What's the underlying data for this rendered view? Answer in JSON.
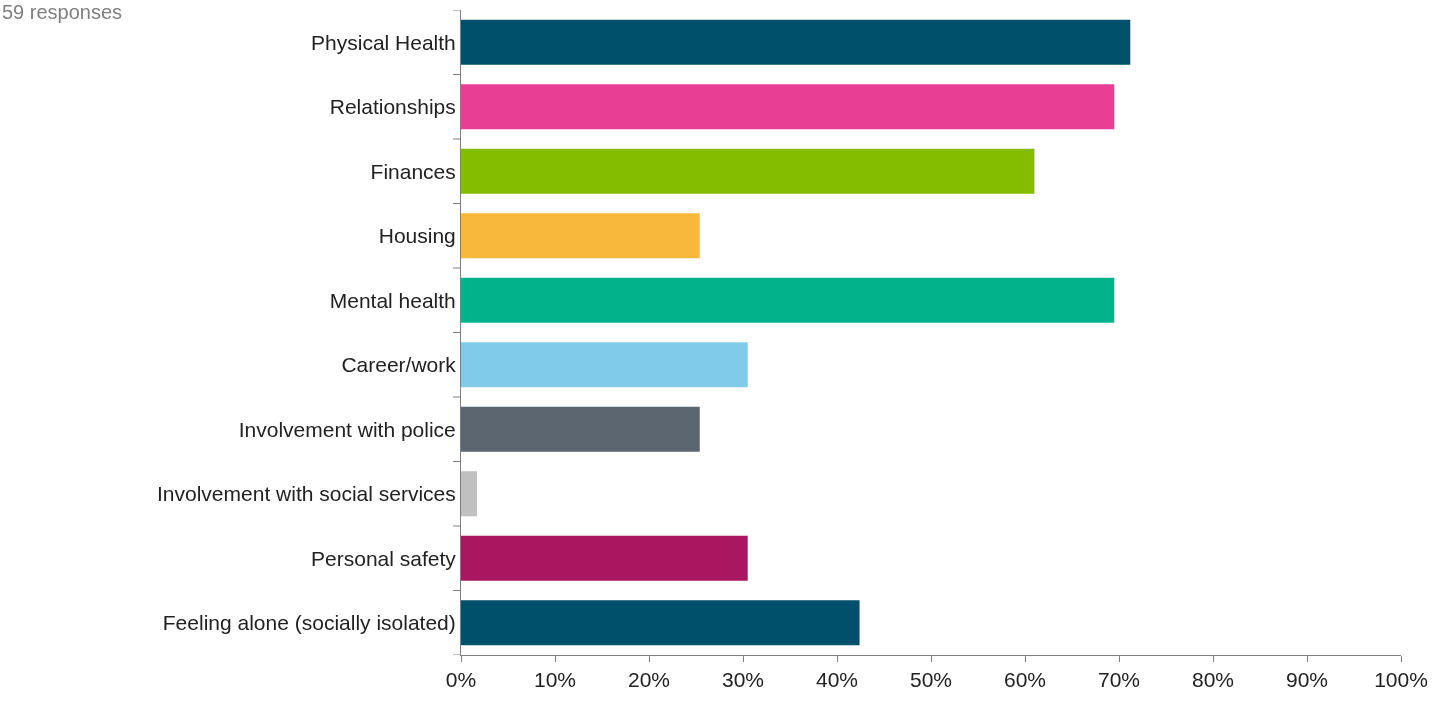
{
  "chart_data": {
    "type": "bar",
    "orientation": "horizontal",
    "annotations": [
      "59 responses"
    ],
    "categories": [
      "Physical Health",
      "Relationships",
      "Finances",
      "Housing",
      "Mental health",
      "Career/work",
      "Involvement with police",
      "Involvement with social services",
      "Personal safety",
      "Feeling alone (socially isolated)"
    ],
    "values": [
      71.2,
      69.5,
      61.0,
      25.4,
      69.5,
      30.5,
      25.4,
      1.7,
      30.5,
      42.4
    ],
    "colors": [
      "#004f6b",
      "#e83e93",
      "#84bd00",
      "#f8b83c",
      "#00b38b",
      "#80cbea",
      "#5c6670",
      "#c0c0c0",
      "#a8175f",
      "#004f6b"
    ],
    "xlim": [
      0,
      100
    ],
    "xticks": [
      {
        "value": 0,
        "label": "0%"
      },
      {
        "value": 10,
        "label": "10%"
      },
      {
        "value": 20,
        "label": "20%"
      },
      {
        "value": 30,
        "label": "30%"
      },
      {
        "value": 40,
        "label": "40%"
      },
      {
        "value": 50,
        "label": "50%"
      },
      {
        "value": 60,
        "label": "60%"
      },
      {
        "value": 70,
        "label": "70%"
      },
      {
        "value": 80,
        "label": "80%"
      },
      {
        "value": 90,
        "label": "90%"
      },
      {
        "value": 100,
        "label": "100%"
      }
    ],
    "data_labels": false
  }
}
